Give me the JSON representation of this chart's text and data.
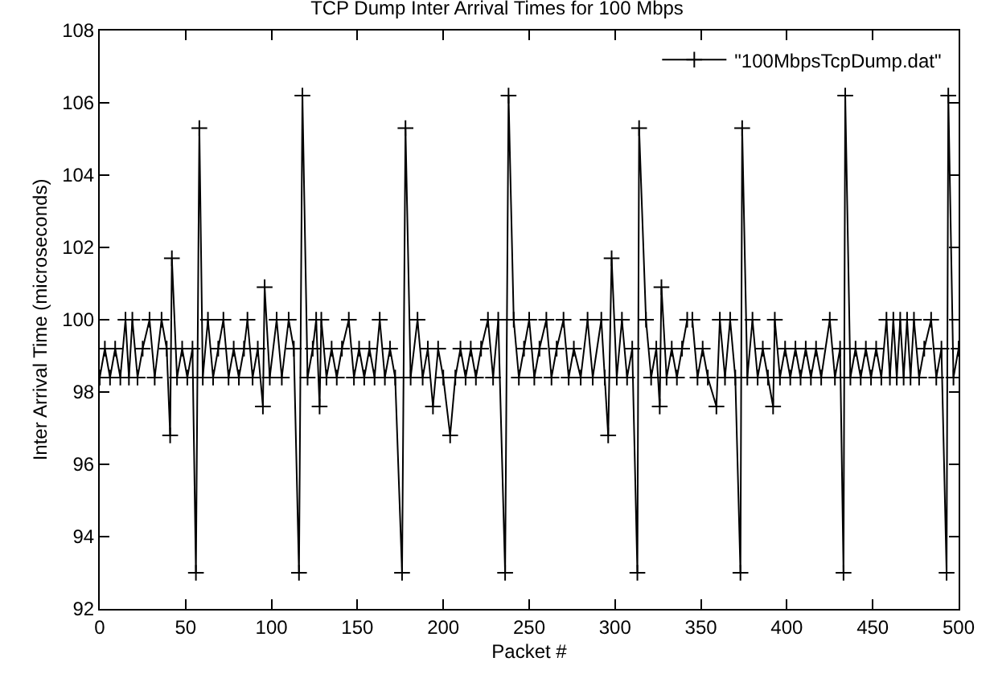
{
  "chart_data": {
    "type": "line",
    "title": "TCP Dump Inter Arrival Times for 100 Mbps",
    "xlabel": "Packet #",
    "ylabel": "Inter Arrival Time (microseconds)",
    "xlim": [
      0,
      500
    ],
    "xticks": [
      0,
      50,
      100,
      150,
      200,
      250,
      300,
      350,
      400,
      450,
      500
    ],
    "ylim": [
      92,
      108
    ],
    "yticks": [
      92,
      94,
      96,
      98,
      100,
      102,
      104,
      106,
      108
    ],
    "grid": false,
    "legend": "top right",
    "marker": "cross",
    "line_style": "solid",
    "series": [
      {
        "name": "\"100MbpsTcpDump.dat\"",
        "color": "#000000",
        "x": [
          0,
          3,
          6,
          9,
          12,
          15,
          17,
          19,
          22,
          25,
          29,
          32,
          36,
          39,
          41,
          42,
          45,
          48,
          51,
          54,
          56,
          58,
          60,
          63,
          66,
          69,
          72,
          75,
          78,
          81,
          84,
          86,
          89,
          92,
          95,
          96,
          99,
          103,
          106,
          110,
          113,
          116,
          118,
          121,
          124,
          126,
          128,
          129,
          132,
          135,
          138,
          141,
          145,
          148,
          151,
          154,
          157,
          160,
          163,
          166,
          169,
          172,
          176,
          178,
          181,
          185,
          188,
          191,
          194,
          197,
          200,
          204,
          207,
          210,
          213,
          216,
          219,
          222,
          226,
          229,
          232,
          236,
          238,
          241,
          244,
          247,
          250,
          253,
          256,
          260,
          263,
          266,
          270,
          273,
          276,
          280,
          284,
          287,
          292,
          294,
          296,
          298,
          301,
          304,
          307,
          310,
          313,
          314,
          318,
          321,
          324,
          326,
          327,
          330,
          333,
          336,
          339,
          342,
          345,
          348,
          351,
          354,
          359,
          361,
          364,
          367,
          370,
          373,
          374,
          377,
          380,
          383,
          386,
          389,
          392,
          393,
          396,
          399,
          402,
          405,
          408,
          411,
          414,
          417,
          420,
          425,
          428,
          431,
          433,
          434,
          437,
          440,
          443,
          446,
          449,
          452,
          455,
          458,
          460,
          462,
          464,
          466,
          468,
          470,
          472,
          474,
          477,
          480,
          484,
          487,
          490,
          493,
          494,
          497,
          500
        ],
        "values": [
          98.4,
          99.2,
          98.4,
          99.2,
          98.4,
          100.0,
          98.4,
          100.0,
          98.4,
          99.2,
          100.0,
          98.4,
          100.0,
          99.2,
          96.8,
          101.7,
          98.4,
          99.2,
          98.4,
          99.2,
          93.0,
          105.3,
          98.4,
          100.0,
          98.4,
          99.2,
          100.0,
          98.4,
          99.2,
          98.4,
          99.2,
          100.0,
          98.4,
          99.2,
          97.6,
          100.9,
          98.4,
          100.0,
          98.4,
          100.0,
          99.2,
          93.0,
          106.2,
          98.4,
          99.2,
          100.0,
          97.6,
          100.0,
          98.4,
          99.2,
          98.4,
          99.2,
          100.0,
          98.4,
          99.2,
          98.4,
          99.2,
          98.4,
          100.0,
          98.4,
          99.2,
          98.4,
          93.0,
          105.3,
          98.4,
          100.0,
          98.4,
          99.2,
          97.6,
          99.2,
          98.4,
          96.8,
          98.4,
          99.2,
          98.4,
          99.2,
          98.4,
          99.2,
          100.0,
          98.4,
          100.0,
          93.0,
          106.2,
          100.0,
          98.4,
          99.2,
          100.0,
          98.4,
          99.2,
          100.0,
          98.4,
          99.2,
          100.0,
          98.4,
          99.2,
          98.4,
          100.0,
          98.4,
          100.0,
          98.4,
          96.8,
          101.7,
          98.4,
          100.0,
          98.4,
          99.2,
          93.0,
          105.3,
          100.0,
          98.4,
          99.2,
          97.6,
          100.9,
          98.4,
          99.2,
          98.4,
          99.2,
          100.0,
          100.0,
          98.4,
          99.2,
          98.4,
          97.6,
          100.0,
          98.4,
          100.0,
          98.4,
          93.0,
          105.3,
          98.4,
          100.0,
          98.4,
          99.2,
          98.4,
          97.6,
          100.0,
          98.4,
          99.2,
          98.4,
          99.2,
          98.4,
          99.2,
          98.4,
          99.2,
          98.4,
          100.0,
          98.4,
          99.2,
          93.0,
          106.2,
          98.4,
          99.2,
          98.4,
          99.2,
          98.4,
          99.2,
          98.4,
          100.0,
          98.4,
          100.0,
          98.4,
          100.0,
          98.4,
          100.0,
          98.4,
          100.0,
          98.4,
          99.2,
          100.0,
          98.4,
          99.2,
          93.0,
          106.2,
          98.4,
          99.2
        ]
      }
    ]
  }
}
